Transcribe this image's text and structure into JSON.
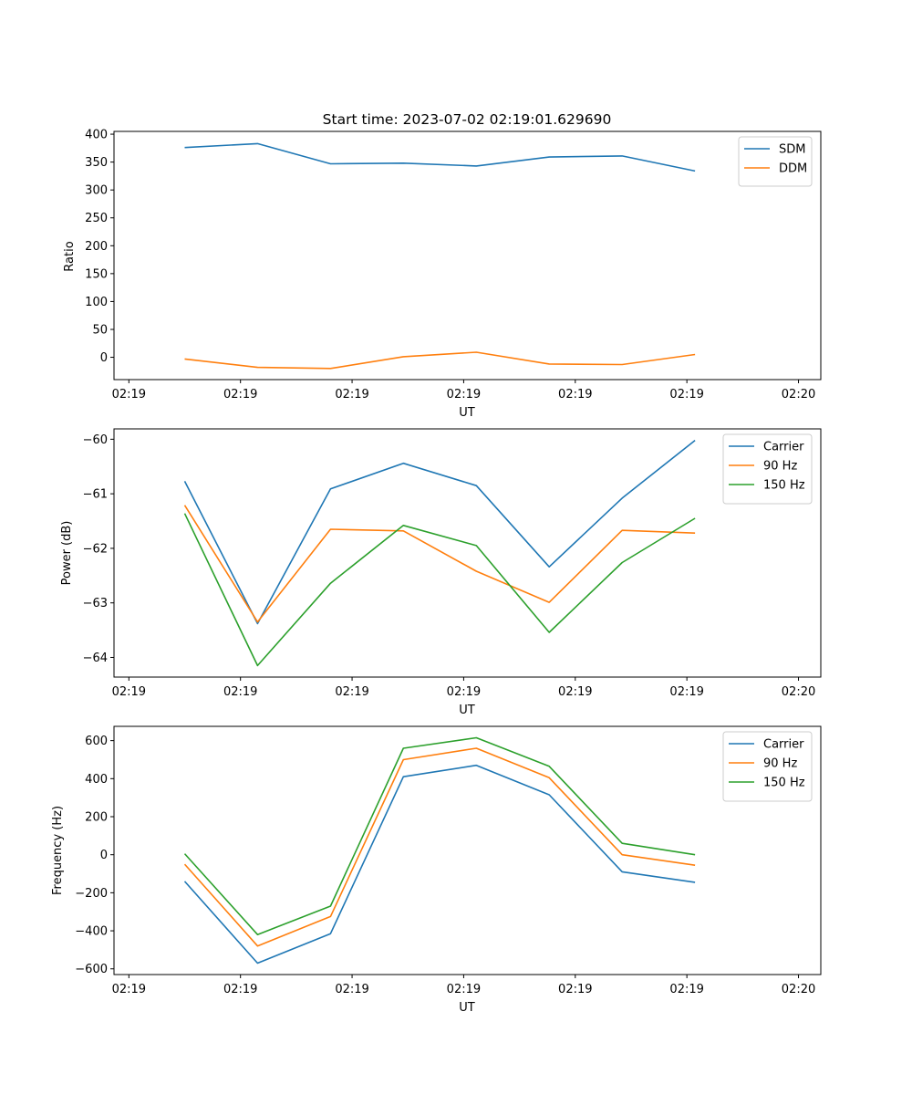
{
  "chart_data": [
    {
      "type": "line",
      "title": "Start time: 2023-07-02 02:19:01.629690",
      "xlabel": "UT",
      "ylabel": "Ratio",
      "xlim": [
        -0.2,
        9.3
      ],
      "ylim": [
        -40,
        405
      ],
      "yticks": [
        0,
        50,
        100,
        150,
        200,
        250,
        300,
        350,
        400
      ],
      "ytick_labels": [
        "0",
        "50",
        "100",
        "150",
        "200",
        "250",
        "300",
        "350",
        "400"
      ],
      "xticks": [
        0,
        1.5,
        3,
        4.5,
        6,
        7.5,
        9
      ],
      "xtick_labels": [
        "02:19",
        "02:19",
        "02:19",
        "02:19",
        "02:19",
        "02:19",
        "02:20"
      ],
      "x": [
        0.75,
        1.73,
        2.71,
        3.69,
        4.67,
        5.65,
        6.63,
        7.61
      ],
      "legend": "top-right",
      "series": [
        {
          "name": "SDM",
          "color": "#1f77b4",
          "values": [
            376,
            383,
            347,
            348,
            343,
            359,
            361,
            334
          ]
        },
        {
          "name": "DDM",
          "color": "#ff7f0e",
          "values": [
            -3,
            -18,
            -20,
            1,
            9,
            -12,
            -13,
            5
          ]
        }
      ]
    },
    {
      "type": "line",
      "title": "",
      "xlabel": "UT",
      "ylabel": "Power (dB)",
      "xlim": [
        -0.2,
        9.3
      ],
      "ylim": [
        -64.36,
        -59.81
      ],
      "yticks": [
        -64,
        -63,
        -62,
        -61,
        -60
      ],
      "ytick_labels": [
        "−64",
        "−63",
        "−62",
        "−61",
        "−60"
      ],
      "xticks": [
        0,
        1.5,
        3,
        4.5,
        6,
        7.5,
        9
      ],
      "xtick_labels": [
        "02:19",
        "02:19",
        "02:19",
        "02:19",
        "02:19",
        "02:19",
        "02:20"
      ],
      "x": [
        0.75,
        1.73,
        2.71,
        3.69,
        4.67,
        5.65,
        6.63,
        7.61
      ],
      "legend": "top-right",
      "series": [
        {
          "name": "Carrier",
          "color": "#1f77b4",
          "values": [
            -60.77,
            -63.38,
            -60.91,
            -60.44,
            -60.85,
            -62.34,
            -61.08,
            -60.02
          ]
        },
        {
          "name": "90 Hz",
          "color": "#ff7f0e",
          "values": [
            -61.21,
            -63.35,
            -61.65,
            -61.68,
            -62.42,
            -62.99,
            -61.67,
            -61.72
          ]
        },
        {
          "name": "150 Hz",
          "color": "#2ca02c",
          "values": [
            -61.36,
            -64.15,
            -62.64,
            -61.58,
            -61.95,
            -63.54,
            -62.26,
            -61.45
          ]
        }
      ]
    },
    {
      "type": "line",
      "title": "",
      "xlabel": "UT",
      "ylabel": "Frequency (Hz)",
      "xlim": [
        -0.2,
        9.3
      ],
      "ylim": [
        -630,
        675
      ],
      "yticks": [
        -600,
        -400,
        -200,
        0,
        200,
        400,
        600
      ],
      "ytick_labels": [
        "−600",
        "−400",
        "−200",
        "0",
        "200",
        "400",
        "600"
      ],
      "xticks": [
        0,
        1.5,
        3,
        4.5,
        6,
        7.5,
        9
      ],
      "xtick_labels": [
        "02:19",
        "02:19",
        "02:19",
        "02:19",
        "02:19",
        "02:19",
        "02:20"
      ],
      "x": [
        0.75,
        1.73,
        2.71,
        3.69,
        4.67,
        5.65,
        6.63,
        7.61
      ],
      "legend": "top-right",
      "series": [
        {
          "name": "Carrier",
          "color": "#1f77b4",
          "values": [
            -140,
            -570,
            -415,
            410,
            470,
            315,
            -90,
            -145
          ]
        },
        {
          "name": "90 Hz",
          "color": "#ff7f0e",
          "values": [
            -50,
            -480,
            -325,
            500,
            560,
            405,
            0,
            -55
          ]
        },
        {
          "name": "150 Hz",
          "color": "#2ca02c",
          "values": [
            5,
            -420,
            -270,
            560,
            615,
            465,
            60,
            0
          ]
        }
      ]
    }
  ]
}
